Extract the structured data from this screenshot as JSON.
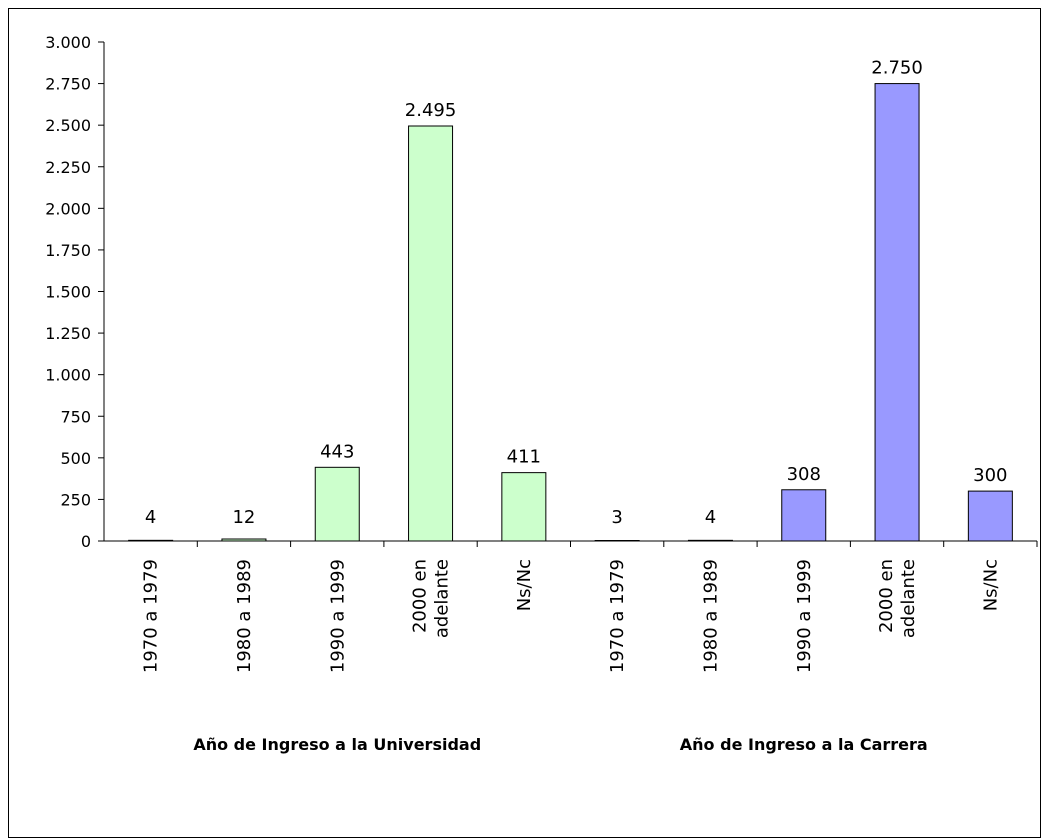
{
  "chart_data": {
    "type": "bar",
    "ylim": [
      0,
      3000
    ],
    "ytick_values": [
      0,
      250,
      500,
      750,
      1000,
      1250,
      1500,
      1750,
      2000,
      2250,
      2500,
      2750,
      3000
    ],
    "ytick_labels": [
      "0",
      "250",
      "500",
      "750",
      "1.000",
      "1.250",
      "1.500",
      "1.750",
      "2.000",
      "2.250",
      "2.500",
      "2.750",
      "3.000"
    ],
    "grid": false,
    "groups": [
      {
        "name": "Año de Ingreso a la Universidad",
        "color": "#ccffcc",
        "categories": [
          [
            "1970 a 1979"
          ],
          [
            "1980 a 1989"
          ],
          [
            "1990 a 1999"
          ],
          [
            "2000 en",
            "adelante"
          ],
          [
            "Ns/Nc"
          ]
        ],
        "values": [
          4,
          12,
          443,
          2495,
          411
        ],
        "value_labels": [
          "4",
          "12",
          "443",
          "2.495",
          "411"
        ]
      },
      {
        "name": "Año de Ingreso a la Carrera",
        "color": "#9999ff",
        "categories": [
          [
            "1970 a 1979"
          ],
          [
            "1980 a 1989"
          ],
          [
            "1990 a 1999"
          ],
          [
            "2000 en",
            "adelante"
          ],
          [
            "Ns/Nc"
          ]
        ],
        "values": [
          3,
          4,
          308,
          2750,
          300
        ],
        "value_labels": [
          "3",
          "4",
          "308",
          "2.750",
          "300"
        ]
      }
    ]
  }
}
